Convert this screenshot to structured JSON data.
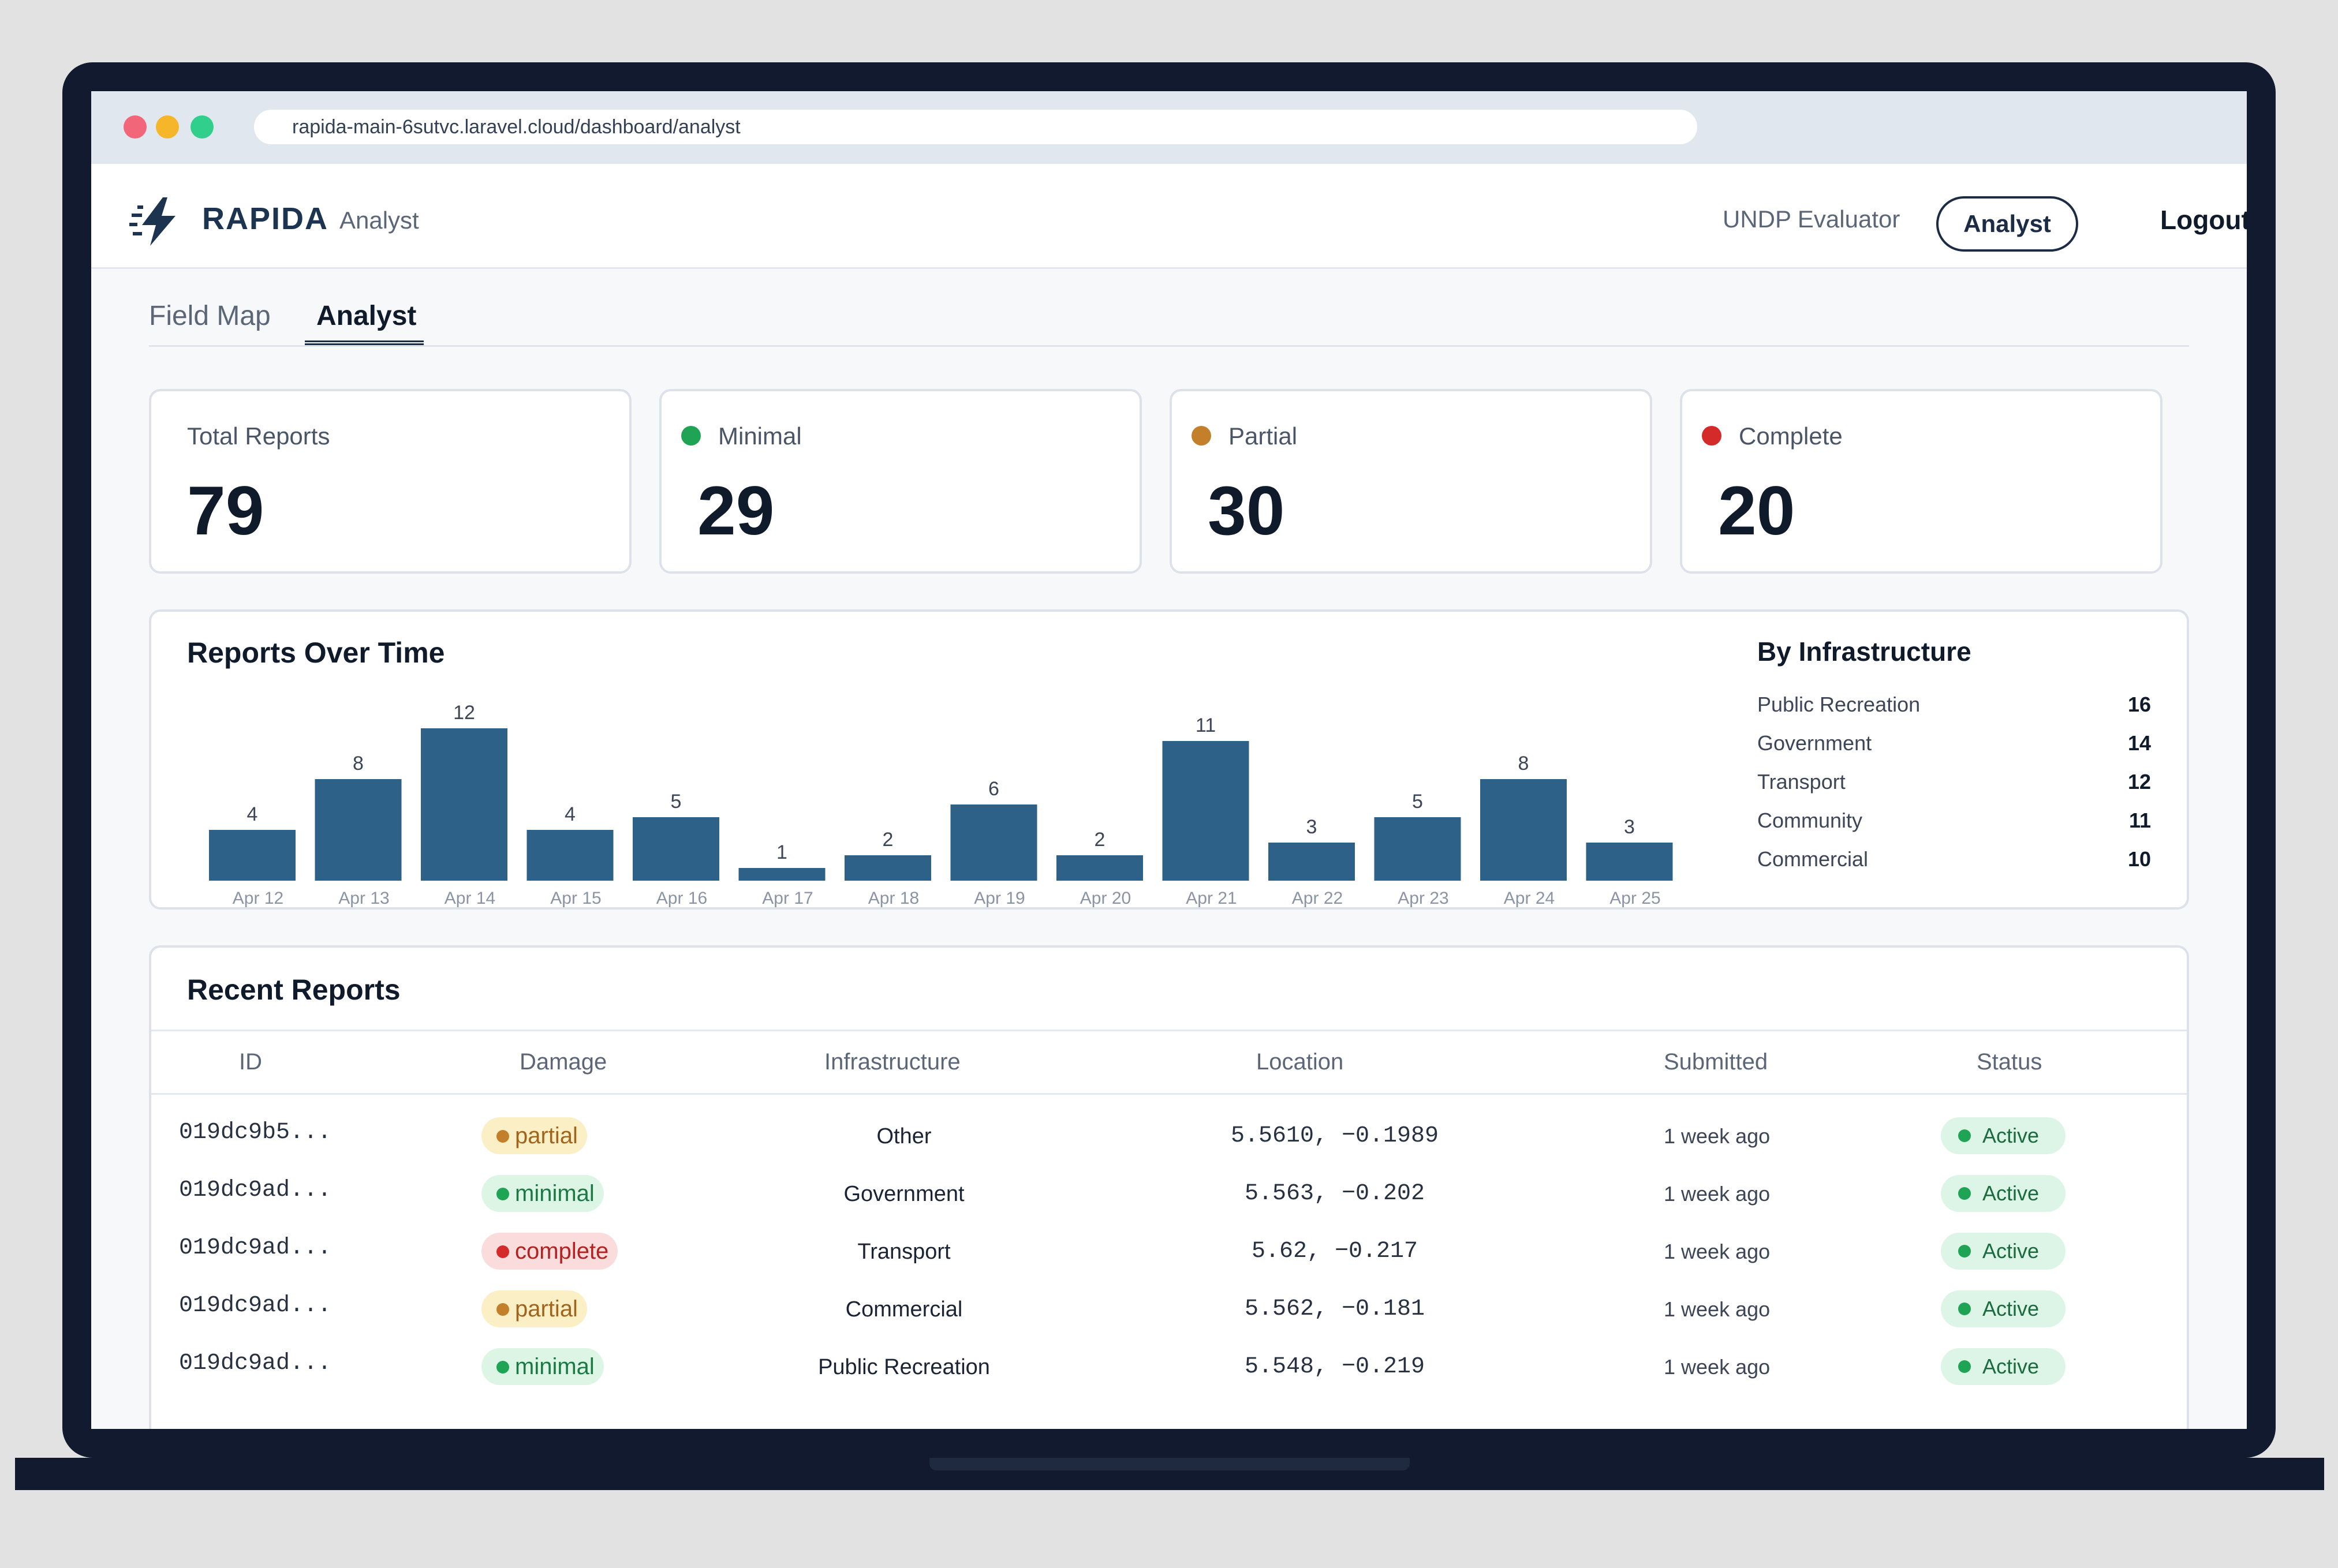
{
  "browser": {
    "url": "rapida-main-6sutvc.laravel.cloud/dashboard/analyst"
  },
  "header": {
    "brand": "RAPIDA",
    "brand_sub": "Analyst",
    "nav_evaluator": "UNDP Evaluator",
    "nav_analyst": "Analyst",
    "nav_logout": "Logout"
  },
  "tabs": [
    {
      "label": "Field Map",
      "active": false
    },
    {
      "label": "Analyst",
      "active": true
    }
  ],
  "stats": [
    {
      "label": "Total Reports",
      "value": "79",
      "dot_color": null
    },
    {
      "label": "Minimal",
      "value": "29",
      "dot_color": "#1fa355"
    },
    {
      "label": "Partial",
      "value": "30",
      "dot_color": "#c47f2a"
    },
    {
      "label": "Complete",
      "value": "20",
      "dot_color": "#d42a2a"
    }
  ],
  "chart": {
    "title": "Reports Over Time"
  },
  "chart_data": {
    "type": "bar",
    "title": "Reports Over Time",
    "categories": [
      "Apr 12",
      "Apr 13",
      "Apr 14",
      "Apr 15",
      "Apr 16",
      "Apr 17",
      "Apr 18",
      "Apr 19",
      "Apr 20",
      "Apr 21",
      "Apr 22",
      "Apr 23",
      "Apr 24",
      "Apr 25"
    ],
    "values": [
      4,
      8,
      12,
      4,
      5,
      1,
      2,
      6,
      2,
      11,
      3,
      5,
      8,
      3
    ],
    "xlabel": "",
    "ylabel": "",
    "ylim": [
      0,
      12
    ],
    "grid": false,
    "bar_color": "#2e6187"
  },
  "infrastructure": {
    "title": "By Infrastructure",
    "items": [
      {
        "name": "Public Recreation",
        "count": "16"
      },
      {
        "name": "Government",
        "count": "14"
      },
      {
        "name": "Transport",
        "count": "12"
      },
      {
        "name": "Community",
        "count": "11"
      },
      {
        "name": "Commercial",
        "count": "10"
      }
    ]
  },
  "reports": {
    "title": "Recent Reports",
    "columns": [
      "ID",
      "Damage",
      "Infrastructure",
      "Location",
      "Submitted",
      "Status"
    ],
    "rows": [
      {
        "id": "019dc9b5...",
        "damage": "partial",
        "infrastructure": "Other",
        "location": "5.5610, −0.1989",
        "submitted": "1 week ago",
        "status": "Active"
      },
      {
        "id": "019dc9ad...",
        "damage": "minimal",
        "infrastructure": "Government",
        "location": "5.563, −0.202",
        "submitted": "1 week ago",
        "status": "Active"
      },
      {
        "id": "019dc9ad...",
        "damage": "complete",
        "infrastructure": "Transport",
        "location": "5.62, −0.217",
        "submitted": "1 week ago",
        "status": "Active"
      },
      {
        "id": "019dc9ad...",
        "damage": "partial",
        "infrastructure": "Commercial",
        "location": "5.562, −0.181",
        "submitted": "1 week ago",
        "status": "Active"
      },
      {
        "id": "019dc9ad...",
        "damage": "minimal",
        "infrastructure": "Public Recreation",
        "location": "5.548, −0.219",
        "submitted": "1 week ago",
        "status": "Active"
      }
    ]
  },
  "damage_styles": {
    "partial": {
      "bg": "#fbefc6",
      "fg": "#a0641c",
      "dot": "#c47f2a"
    },
    "minimal": {
      "bg": "#dcf5e4",
      "fg": "#1b7a44",
      "dot": "#1fa355"
    },
    "complete": {
      "bg": "#fbdcdc",
      "fg": "#b22222",
      "dot": "#d42a2a"
    }
  }
}
